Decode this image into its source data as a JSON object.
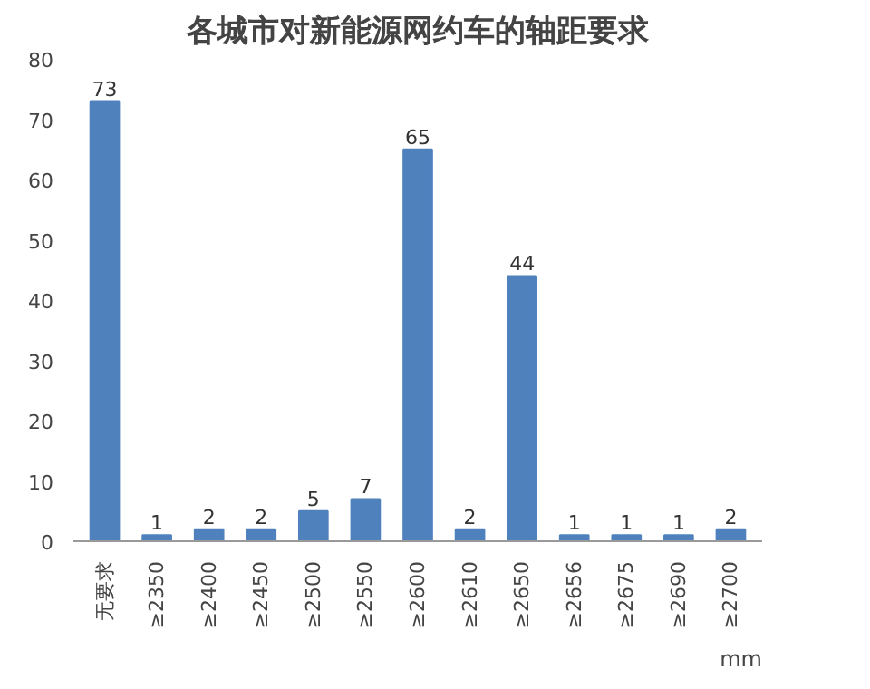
{
  "chart_data": {
    "type": "bar",
    "title": "各城市对新能源网约车的轴距要求",
    "xlabel": "mm",
    "categories": [
      "无要求",
      "≥2350",
      "≥2400",
      "≥2450",
      "≥2500",
      "≥2550",
      "≥2600",
      "≥2610",
      "≥2650",
      "≥2656",
      "≥2675",
      "≥2690",
      "≥2700"
    ],
    "values": [
      73,
      1,
      2,
      2,
      5,
      7,
      65,
      2,
      44,
      1,
      1,
      1,
      2
    ],
    "color": "#4f81bd",
    "ylim": [
      0,
      80
    ],
    "yticks": [
      0,
      10,
      20,
      30,
      40,
      50,
      60,
      70,
      80
    ],
    "grid": false,
    "data_labels": true
  }
}
